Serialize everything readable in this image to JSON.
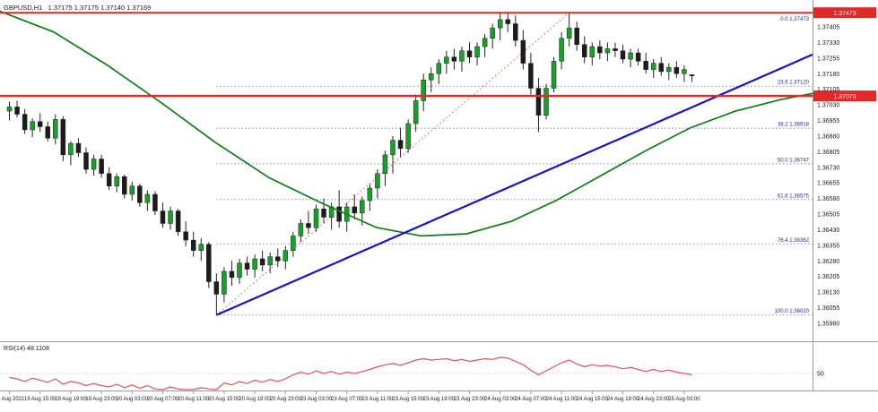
{
  "header": {
    "symbol_ohlc": "GBPUSD,H1   1.37175 1.37175 1.37140 1.37169"
  },
  "rsi_panel": {
    "label": "RSI(14) 48.1108",
    "axis_label": "50"
  },
  "colors": {
    "bull": "#17a02a",
    "bear": "#1c1c1c",
    "wick": "#222222",
    "ma": "#0d7d12",
    "trend": "#1414cc",
    "fib_line": "#3c3cc8",
    "fib_text": "#2a2aa8",
    "hline": "#e02a2a",
    "fib_diag": "#ef6a6a",
    "rsi": "#e05555",
    "axis_text": "#1a1a1a",
    "badge_text": "#ffffff",
    "grid": "#d8d8d8",
    "separator": "#9a9a9a"
  },
  "chart_data": {
    "type": "candlestick",
    "symbol": "GBPUSD",
    "timeframe": "H1",
    "last_bar": {
      "open": 1.37175,
      "high": 1.37175,
      "low": 1.3714,
      "close": 1.37169
    },
    "price_axis": {
      "top": 1.37405,
      "step": 0.00075,
      "labels": [
        "1.37405",
        "1.37330",
        "1.37255",
        "1.37180",
        "1.37105",
        "1.37030",
        "1.36955",
        "1.36880",
        "1.36805",
        "1.36730",
        "1.36655",
        "1.36580",
        "1.36505",
        "1.36430",
        "1.36355",
        "1.36280",
        "1.36205",
        "1.36130",
        "1.36055",
        "1.35980"
      ]
    },
    "time_labels": [
      {
        "i": 0,
        "t": "19 Aug 2021"
      },
      {
        "i": 4,
        "t": "19 Aug 15:00"
      },
      {
        "i": 8,
        "t": "19 Aug 19:00"
      },
      {
        "i": 12,
        "t": "19 Aug 23:00"
      },
      {
        "i": 16,
        "t": "20 Aug 03:00"
      },
      {
        "i": 20,
        "t": "20 Aug 07:00"
      },
      {
        "i": 24,
        "t": "20 Aug 11:00"
      },
      {
        "i": 28,
        "t": "20 Aug 15:00"
      },
      {
        "i": 32,
        "t": "20 Aug 19:00"
      },
      {
        "i": 36,
        "t": "20 Aug 23:00"
      },
      {
        "i": 40,
        "t": "23 Aug 03:00"
      },
      {
        "i": 44,
        "t": "23 Aug 07:00"
      },
      {
        "i": 48,
        "t": "23 Aug 11:00"
      },
      {
        "i": 52,
        "t": "23 Aug 15:00"
      },
      {
        "i": 56,
        "t": "23 Aug 19:00"
      },
      {
        "i": 60,
        "t": "23 Aug 23:00"
      },
      {
        "i": 64,
        "t": "24 Aug 03:00"
      },
      {
        "i": 68,
        "t": "24 Aug 07:00"
      },
      {
        "i": 72,
        "t": "24 Aug 11:00"
      },
      {
        "i": 76,
        "t": "24 Aug 15:00"
      },
      {
        "i": 80,
        "t": "24 Aug 19:00"
      },
      {
        "i": 84,
        "t": "24 Aug 23:00"
      },
      {
        "i": 88,
        "t": "25 Aug 03:00"
      }
    ],
    "fib_levels": [
      {
        "pct": "0.0",
        "price": 1.37473
      },
      {
        "pct": "23.6",
        "price": 1.3712
      },
      {
        "pct": "38.2",
        "price": 1.36918
      },
      {
        "pct": "50.0",
        "price": 1.36747
      },
      {
        "pct": "61.8",
        "price": 1.36575
      },
      {
        "pct": "76.4",
        "price": 1.36362
      },
      {
        "pct": "100.0",
        "price": 1.3602
      }
    ],
    "fib_diagonal": {
      "from_bar": 27,
      "from_price": 1.3602,
      "to_bar": 73,
      "to_price": 1.37473
    },
    "resistance_line": {
      "price": 1.37473,
      "badge": "1.37473"
    },
    "support_line": {
      "price": 1.37073,
      "badge": "1.37073"
    },
    "trendline": {
      "from_bar": 27,
      "from_price": 1.3602,
      "to_price": 1.37272
    },
    "ma_points": [
      [
        0,
        1.3748
      ],
      [
        60,
        1.3738
      ],
      [
        120,
        1.3722
      ],
      [
        180,
        1.3704
      ],
      [
        240,
        1.3685
      ],
      [
        300,
        1.3668
      ],
      [
        360,
        1.36555
      ],
      [
        420,
        1.3644
      ],
      [
        470,
        1.364
      ],
      [
        520,
        1.3641
      ],
      [
        570,
        1.3647
      ],
      [
        620,
        1.3657
      ],
      [
        670,
        1.3669
      ],
      [
        720,
        1.3681
      ],
      [
        770,
        1.3692
      ],
      [
        820,
        1.37
      ],
      [
        870,
        1.37055
      ],
      [
        906,
        1.37085
      ]
    ],
    "candles": [
      [
        1.37,
        1.37045,
        1.36955,
        1.3702
      ],
      [
        1.3702,
        1.3705,
        1.3697,
        1.36985
      ],
      [
        1.36985,
        1.3701,
        1.3689,
        1.3691
      ],
      [
        1.3691,
        1.36965,
        1.36875,
        1.3695
      ],
      [
        1.3695,
        1.3699,
        1.369,
        1.36925
      ],
      [
        1.36925,
        1.3695,
        1.36855,
        1.3687
      ],
      [
        1.3687,
        1.36985,
        1.3684,
        1.3696
      ],
      [
        1.3696,
        1.36975,
        1.3676,
        1.3679
      ],
      [
        1.3679,
        1.36855,
        1.3674,
        1.36845
      ],
      [
        1.36845,
        1.3687,
        1.3678,
        1.368
      ],
      [
        1.368,
        1.36825,
        1.367,
        1.3672
      ],
      [
        1.3672,
        1.3679,
        1.3669,
        1.3677
      ],
      [
        1.3677,
        1.3679,
        1.3668,
        1.367
      ],
      [
        1.367,
        1.3673,
        1.3662,
        1.3664
      ],
      [
        1.3664,
        1.367,
        1.3661,
        1.36685
      ],
      [
        1.36685,
        1.36695,
        1.3658,
        1.366
      ],
      [
        1.366,
        1.3666,
        1.3657,
        1.3664
      ],
      [
        1.3664,
        1.3665,
        1.3654,
        1.3656
      ],
      [
        1.3656,
        1.3662,
        1.3652,
        1.366
      ],
      [
        1.366,
        1.36615,
        1.365,
        1.3652
      ],
      [
        1.3652,
        1.3656,
        1.3644,
        1.3646
      ],
      [
        1.3646,
        1.3654,
        1.3643,
        1.3652
      ],
      [
        1.3652,
        1.3653,
        1.364,
        1.3642
      ],
      [
        1.3642,
        1.3647,
        1.3635,
        1.3638
      ],
      [
        1.3638,
        1.3642,
        1.363,
        1.3633
      ],
      [
        1.3633,
        1.3639,
        1.3628,
        1.3636
      ],
      [
        1.3636,
        1.3637,
        1.3615,
        1.3618
      ],
      [
        1.3618,
        1.3622,
        1.3602,
        1.3612
      ],
      [
        1.3612,
        1.3625,
        1.3608,
        1.3623
      ],
      [
        1.3623,
        1.3628,
        1.3616,
        1.362
      ],
      [
        1.362,
        1.3629,
        1.3617,
        1.3627
      ],
      [
        1.3627,
        1.363,
        1.3621,
        1.3624
      ],
      [
        1.3624,
        1.3631,
        1.362,
        1.3629
      ],
      [
        1.3629,
        1.3633,
        1.3623,
        1.3626
      ],
      [
        1.3626,
        1.3632,
        1.3622,
        1.363
      ],
      [
        1.363,
        1.3634,
        1.3625,
        1.3628
      ],
      [
        1.3628,
        1.3635,
        1.3624,
        1.3633
      ],
      [
        1.3633,
        1.3642,
        1.363,
        1.364
      ],
      [
        1.364,
        1.3648,
        1.3637,
        1.3646
      ],
      [
        1.3646,
        1.3652,
        1.3641,
        1.3644
      ],
      [
        1.3644,
        1.3655,
        1.3642,
        1.3653
      ],
      [
        1.3653,
        1.3658,
        1.3646,
        1.3649
      ],
      [
        1.3649,
        1.3656,
        1.3643,
        1.3654
      ],
      [
        1.3654,
        1.3662,
        1.3644,
        1.3647
      ],
      [
        1.3647,
        1.3656,
        1.3642,
        1.3654
      ],
      [
        1.3654,
        1.366,
        1.3648,
        1.3651
      ],
      [
        1.3651,
        1.3659,
        1.3645,
        1.3657
      ],
      [
        1.3657,
        1.3665,
        1.3652,
        1.3663
      ],
      [
        1.3663,
        1.3672,
        1.3658,
        1.367
      ],
      [
        1.367,
        1.3681,
        1.3664,
        1.3679
      ],
      [
        1.3679,
        1.3688,
        1.367,
        1.3686
      ],
      [
        1.3686,
        1.3692,
        1.3678,
        1.3682
      ],
      [
        1.3682,
        1.3696,
        1.368,
        1.3694
      ],
      [
        1.3694,
        1.3708,
        1.369,
        1.3705
      ],
      [
        1.3705,
        1.3718,
        1.37,
        1.3715
      ],
      [
        1.3715,
        1.3721,
        1.3709,
        1.3718
      ],
      [
        1.3718,
        1.3725,
        1.3713,
        1.3723
      ],
      [
        1.3723,
        1.3729,
        1.3718,
        1.3726
      ],
      [
        1.3726,
        1.373,
        1.372,
        1.3724
      ],
      [
        1.3724,
        1.3731,
        1.3719,
        1.3729
      ],
      [
        1.3729,
        1.3733,
        1.3723,
        1.3726
      ],
      [
        1.3726,
        1.3733,
        1.3722,
        1.3731
      ],
      [
        1.3731,
        1.3737,
        1.3726,
        1.3735
      ],
      [
        1.3735,
        1.3742,
        1.373,
        1.374
      ],
      [
        1.374,
        1.3747,
        1.3734,
        1.3744
      ],
      [
        1.3744,
        1.37473,
        1.3738,
        1.3742
      ],
      [
        1.3742,
        1.3746,
        1.3731,
        1.3734
      ],
      [
        1.3734,
        1.3739,
        1.372,
        1.3723
      ],
      [
        1.3723,
        1.3728,
        1.3708,
        1.3711
      ],
      [
        1.3711,
        1.3716,
        1.369,
        1.3698
      ],
      [
        1.3698,
        1.3713,
        1.3696,
        1.3711
      ],
      [
        1.3711,
        1.3726,
        1.3709,
        1.3724
      ],
      [
        1.3724,
        1.3738,
        1.372,
        1.3735
      ],
      [
        1.3735,
        1.37473,
        1.3731,
        1.374
      ],
      [
        1.374,
        1.3743,
        1.3729,
        1.3732
      ],
      [
        1.3732,
        1.3736,
        1.3723,
        1.3726
      ],
      [
        1.3726,
        1.3733,
        1.3722,
        1.3731
      ],
      [
        1.3731,
        1.3734,
        1.3725,
        1.3728
      ],
      [
        1.3728,
        1.3733,
        1.3724,
        1.373
      ],
      [
        1.373,
        1.3733,
        1.3726,
        1.3729
      ],
      [
        1.3729,
        1.3732,
        1.3723,
        1.3725
      ],
      [
        1.3725,
        1.373,
        1.3721,
        1.3728
      ],
      [
        1.3728,
        1.373,
        1.3722,
        1.3724
      ],
      [
        1.3724,
        1.3728,
        1.3718,
        1.372
      ],
      [
        1.372,
        1.3725,
        1.3716,
        1.3723
      ],
      [
        1.3723,
        1.3726,
        1.3717,
        1.3719
      ],
      [
        1.3719,
        1.3723,
        1.3715,
        1.3721
      ],
      [
        1.3721,
        1.3724,
        1.3716,
        1.3718
      ],
      [
        1.3718,
        1.3722,
        1.3714,
        1.372
      ],
      [
        1.37175,
        1.37175,
        1.3714,
        1.37169
      ]
    ],
    "rsi": {
      "period": 14,
      "value": 48.1108,
      "level": 50,
      "values": [
        44,
        42,
        38,
        43,
        40,
        37,
        42,
        34,
        38,
        36,
        32,
        35,
        32,
        30,
        34,
        29,
        33,
        28,
        32,
        27,
        26,
        30,
        27,
        26,
        26,
        29,
        27,
        26,
        36,
        33,
        38,
        35,
        40,
        37,
        41,
        38,
        42,
        48,
        52,
        49,
        54,
        50,
        53,
        49,
        52,
        50,
        53,
        56,
        60,
        63,
        65,
        62,
        66,
        70,
        72,
        70,
        71,
        72,
        69,
        71,
        68,
        70,
        72,
        71,
        74,
        73,
        68,
        63,
        55,
        48,
        54,
        60,
        66,
        70,
        64,
        60,
        63,
        61,
        62,
        60,
        57,
        59,
        56,
        53,
        56,
        53,
        55,
        52,
        50,
        48.11
      ]
    }
  }
}
